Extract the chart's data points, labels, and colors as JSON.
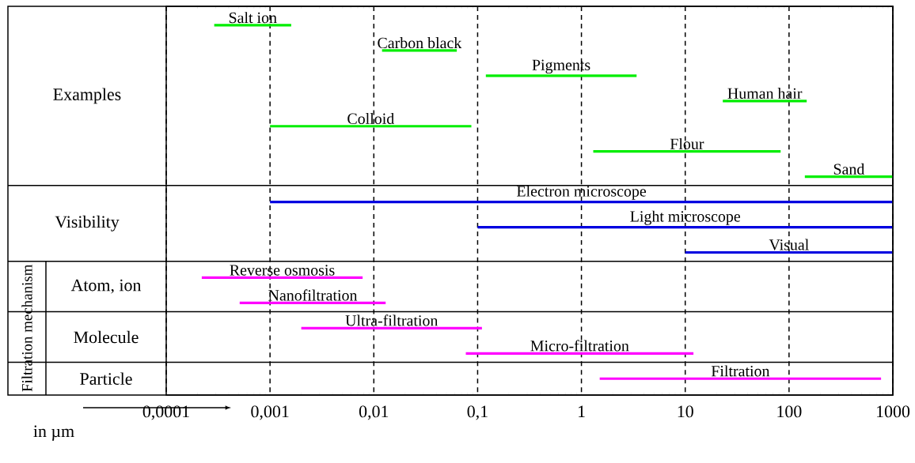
{
  "chart_data": {
    "type": "bar",
    "orientation": "horizontal",
    "log": "x",
    "categories": [
      "Salt ion",
      "Carbon black",
      "Pigments",
      "Human hair",
      "Colloid",
      "Flour",
      "Sand",
      "Electron microscope",
      "Light microscope",
      "Visual",
      "Reverse osmosis",
      "Nanofiltration",
      "Ultra-filtration",
      "Micro-filtration",
      "Filtration"
    ],
    "base": [
      0.00029,
      0.012,
      0.12,
      23,
      0.001,
      1.3,
      142,
      0.001,
      0.1,
      10,
      0.00022,
      0.00051,
      0.002,
      0.077,
      1.5
    ],
    "values": [
      0.00131,
      0.051,
      3.28,
      125,
      0.086,
      81.7,
      858,
      999.999,
      999.9,
      990,
      0.00758,
      0.01249,
      0.108,
      11.923,
      768.5
    ],
    "colors": [
      "#00ee00",
      "#00ee00",
      "#00ee00",
      "#00ee00",
      "#00ee00",
      "#00ee00",
      "#00ee00",
      "#0000e0",
      "#0000e0",
      "#0000e0",
      "#ff00ff",
      "#ff00ff",
      "#ff00ff",
      "#ff00ff",
      "#ff00ff"
    ],
    "xlabel": "in µm",
    "xlim": [
      0.0001,
      1000
    ],
    "xticks": [
      {
        "value": 0.0001,
        "label": "0,0001"
      },
      {
        "value": 0.001,
        "label": "0,001"
      },
      {
        "value": 0.01,
        "label": "0,01"
      },
      {
        "value": 0.1,
        "label": "0,1"
      },
      {
        "value": 1,
        "label": "1"
      },
      {
        "value": 10,
        "label": "10"
      },
      {
        "value": 100,
        "label": "100"
      },
      {
        "value": 1000,
        "label": "1000"
      }
    ],
    "grid": "x",
    "tick_labels": "x",
    "annotations": [
      "Examples",
      "Visibility",
      "Filtration mechanism",
      "Atom, ion",
      "Molecule",
      "Particle"
    ]
  }
}
